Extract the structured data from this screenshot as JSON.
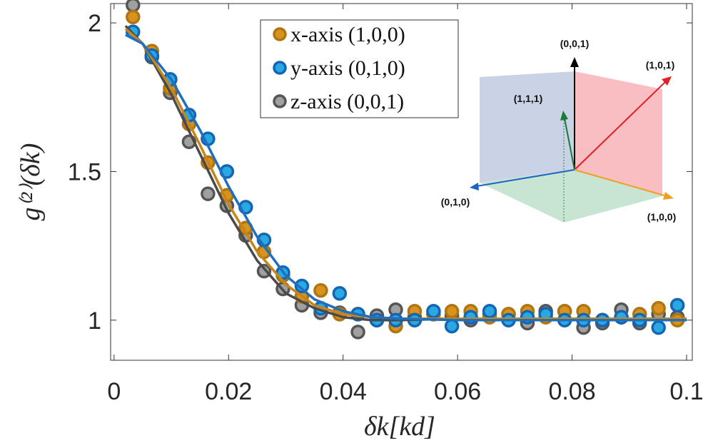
{
  "chart_data": {
    "type": "scatter",
    "xlabel": "δk[kd]",
    "ylabel": "g⁽²⁾(δk)",
    "xlim": [
      -0.0006,
      0.101
    ],
    "ylim": [
      0.865,
      2.065
    ],
    "xticks": [
      0,
      0.02,
      0.04,
      0.06,
      0.08,
      0.1
    ],
    "yticks": [
      1,
      1.5,
      2
    ],
    "x": [
      0.0033,
      0.0066,
      0.0098,
      0.0131,
      0.0164,
      0.0197,
      0.023,
      0.0262,
      0.0295,
      0.0328,
      0.0361,
      0.0394,
      0.0426,
      0.0459,
      0.0492,
      0.0525,
      0.0558,
      0.059,
      0.0623,
      0.0656,
      0.0689,
      0.0722,
      0.0754,
      0.0787,
      0.082,
      0.0853,
      0.0886,
      0.0918,
      0.0951,
      0.0984
    ],
    "fit_x": [
      0.002,
      0.005,
      0.01,
      0.015,
      0.02,
      0.025,
      0.03,
      0.035,
      0.04,
      0.045,
      0.05,
      0.06,
      0.07,
      0.08,
      0.09,
      0.1
    ],
    "series": [
      {
        "name": "z-axis (0,0,1)",
        "color": "#a0a0a0",
        "edgecolor": "#555555",
        "line_color": "#4a4a4a",
        "values": [
          2.06,
          1.885,
          1.765,
          1.6,
          1.425,
          1.385,
          1.285,
          1.165,
          1.105,
          1.05,
          1.025,
          1.025,
          0.96,
          1.015,
          1.035,
          1.01,
          1.02,
          1.015,
          1.0,
          1.02,
          1.02,
          0.99,
          1.03,
          1.03,
          0.975,
          0.99,
          1.035,
          0.99,
          1.02,
          1.01
        ],
        "fit": [
          1.99,
          1.93,
          1.76,
          1.56,
          1.36,
          1.2,
          1.09,
          1.04,
          1.01,
          1.0,
          1.0,
          1.005,
          1.005,
          1.005,
          1.005,
          1.005
        ]
      },
      {
        "name": "x-axis (1,0,0)",
        "color": "#d8921e",
        "edgecolor": "#b07510",
        "line_color": "#c8861a",
        "values": [
          2.02,
          1.905,
          1.78,
          1.66,
          1.53,
          1.42,
          1.31,
          1.23,
          1.15,
          1.08,
          1.1,
          1.02,
          1.02,
          1.0,
          0.98,
          1.03,
          1.02,
          1.03,
          1.03,
          1.01,
          1.02,
          1.03,
          1.01,
          1.03,
          1.03,
          1.0,
          1.01,
          1.02,
          1.04,
          1.0
        ],
        "fit": [
          1.98,
          1.93,
          1.78,
          1.59,
          1.39,
          1.23,
          1.12,
          1.05,
          1.02,
          1.01,
          1.005,
          1.005,
          1.005,
          1.005,
          1.005,
          1.005
        ]
      },
      {
        "name": "y-axis (0,1,0)",
        "color": "#2aa8e2",
        "edgecolor": "#1565b5",
        "line_color": "#1f6fbf",
        "values": [
          1.97,
          1.89,
          1.81,
          1.69,
          1.61,
          1.5,
          1.38,
          1.27,
          1.16,
          1.115,
          1.04,
          1.09,
          1.02,
          1.0,
          1.0,
          1.0,
          1.03,
          0.98,
          1.01,
          1.03,
          1.0,
          1.01,
          1.02,
          1.0,
          1.0,
          1.0,
          1.01,
          1.0,
          0.975,
          1.05
        ],
        "fit": [
          1.96,
          1.93,
          1.81,
          1.64,
          1.45,
          1.28,
          1.15,
          1.07,
          1.03,
          1.01,
          1.005,
          1.0,
          1.0,
          1.0,
          1.0,
          1.0
        ]
      }
    ],
    "legend_order": [
      1,
      2,
      0
    ],
    "inset_labels": [
      "(0,0,1)",
      "(1,0,1)",
      "(1,1,1)",
      "(0,1,0)",
      "(1,0,0)"
    ]
  }
}
